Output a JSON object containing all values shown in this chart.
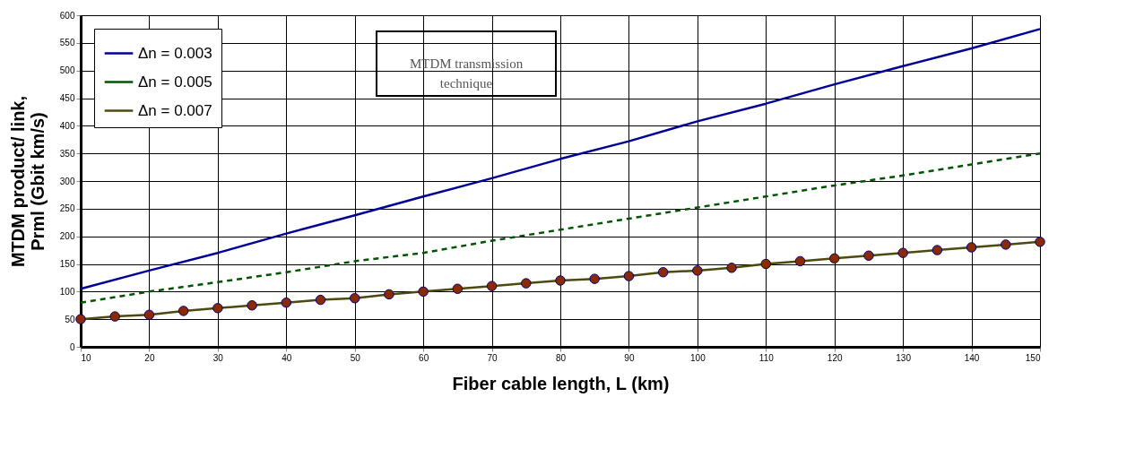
{
  "chart_data": {
    "type": "line",
    "xlabel": "Fiber cable length, L (km)",
    "ylabel": "MTDM  product/ link,\nPrml (Gbit km/s)",
    "annotations": [
      "MTDM  transmission\ntechnique"
    ],
    "xlim": [
      10,
      150
    ],
    "xticks": [
      10,
      20,
      30,
      40,
      50,
      60,
      70,
      80,
      90,
      100,
      110,
      120,
      130,
      140,
      150
    ],
    "ylim": [
      0,
      600
    ],
    "yticks": [
      0,
      50,
      100,
      150,
      200,
      250,
      300,
      350,
      400,
      450,
      500,
      550,
      600
    ],
    "grid": true,
    "legend": "top left",
    "series": [
      {
        "name": "Δn = 0.003",
        "color": "#000099",
        "line_style": "solid",
        "marker": "none",
        "x": [
          10,
          20,
          30,
          40,
          50,
          60,
          70,
          80,
          90,
          100,
          110,
          120,
          130,
          140,
          150
        ],
        "values": [
          105,
          138,
          170,
          205,
          238,
          272,
          305,
          340,
          372,
          408,
          440,
          475,
          508,
          540,
          575
        ]
      },
      {
        "name": "Δn = 0.005",
        "color": "#005500",
        "line_style": "dashed",
        "marker": "none",
        "x": [
          10,
          20,
          30,
          40,
          50,
          60,
          70,
          80,
          90,
          100,
          110,
          120,
          130,
          140,
          150
        ],
        "values": [
          80,
          100,
          117,
          135,
          155,
          170,
          192,
          212,
          232,
          252,
          272,
          292,
          310,
          330,
          350
        ]
      },
      {
        "name": "Δn = 0.007",
        "color": "#4d4a0f",
        "line_style": "solid",
        "marker": "circle",
        "x": [
          10,
          15,
          20,
          25,
          30,
          35,
          40,
          45,
          50,
          55,
          60,
          65,
          70,
          75,
          80,
          85,
          90,
          95,
          100,
          105,
          110,
          115,
          120,
          125,
          130,
          135,
          140,
          145,
          150
        ],
        "values": [
          50,
          55,
          58,
          65,
          70,
          75,
          80,
          85,
          88,
          95,
          100,
          105,
          110,
          115,
          120,
          123,
          128,
          135,
          138,
          143,
          150,
          155,
          160,
          165,
          170,
          175,
          180,
          185,
          190
        ]
      }
    ]
  }
}
